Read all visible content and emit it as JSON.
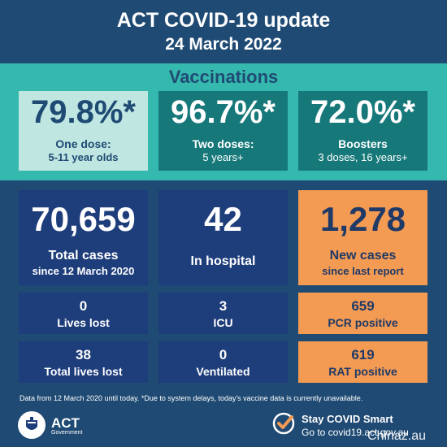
{
  "header": {
    "title": "ACT COVID-19 update",
    "date": "24 March 2022"
  },
  "vaccinations": {
    "title": "Vaccinations",
    "cards": [
      {
        "value": "79.8%*",
        "line1": "One dose:",
        "line2": "5-11 year olds"
      },
      {
        "value": "96.7%*",
        "line1": "Two doses:",
        "line2": "5 years+"
      },
      {
        "value": "72.0%*",
        "line1": "Boosters",
        "line2": "3 doses, 16 years+"
      }
    ]
  },
  "stats": {
    "total_cases": {
      "value": "70,659",
      "label": "Total cases",
      "sub": "since 12 March 2020"
    },
    "in_hospital": {
      "value": "42",
      "label": "In hospital"
    },
    "new_cases": {
      "value": "1,278",
      "label": "New cases",
      "sub": "since last report"
    },
    "lives_lost": {
      "value": "0",
      "label": "Lives lost"
    },
    "icu": {
      "value": "3",
      "label": "ICU"
    },
    "pcr": {
      "value": "659",
      "label": "PCR positive"
    },
    "total_lives_lost": {
      "value": "38",
      "label": "Total lives lost"
    },
    "ventilated": {
      "value": "0",
      "label": "Ventilated"
    },
    "rat": {
      "value": "619",
      "label": "RAT positive"
    }
  },
  "footnote": "Data from 12 March 2020 until today.  *Due to system delays, today's vaccine data is currently unavailable.",
  "footer": {
    "act_logo": "ACT",
    "act_sub": "Government",
    "smart_title": "Stay COVID Smart",
    "smart_url": "Go to covid19.act.gov.au",
    "watermark": "Chinaz.au"
  },
  "colors": {
    "background": "#1f4a73",
    "teal_band": "#35b9ae",
    "teal_card": "#17787a",
    "light_teal_card": "#bfe6e1",
    "navy_card": "#1e3d7b",
    "orange_card": "#f39a53",
    "check_orange": "#f39a53"
  }
}
